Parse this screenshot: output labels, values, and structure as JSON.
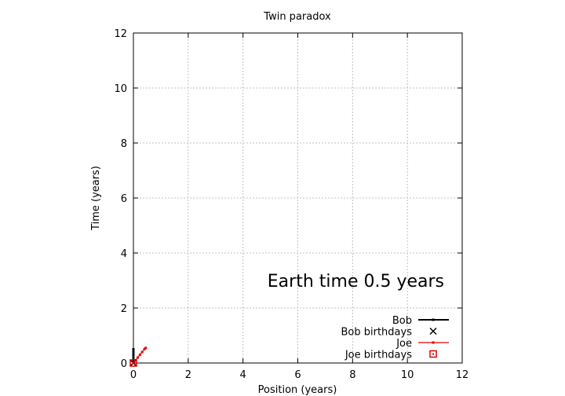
{
  "chart_data": {
    "type": "line",
    "title": "Twin paradox",
    "xlabel": "Position (years)",
    "ylabel": "Time (years)",
    "xlim": [
      0,
      12
    ],
    "ylim": [
      0,
      12
    ],
    "xticks": [
      "0",
      "2",
      "4",
      "6",
      "8",
      "10",
      "12"
    ],
    "yticks": [
      "0",
      "2",
      "4",
      "6",
      "8",
      "10",
      "12"
    ],
    "grid": true,
    "legend_position": "bottom-right",
    "annotation": "Earth time  0.5 years",
    "series": [
      {
        "name": "Bob",
        "style": "line-points",
        "color": "#000000",
        "x": [
          0,
          0,
          0,
          0,
          0,
          0
        ],
        "y": [
          0,
          0.1,
          0.2,
          0.3,
          0.4,
          0.5
        ]
      },
      {
        "name": "Bob birthdays",
        "style": "x-marker",
        "color": "#000000",
        "x": [
          0
        ],
        "y": [
          0
        ]
      },
      {
        "name": "Joe",
        "style": "line-points",
        "color": "#e00000",
        "x": [
          0,
          0.08,
          0.16,
          0.24,
          0.32,
          0.4,
          0.45
        ],
        "y": [
          0,
          0.1,
          0.2,
          0.3,
          0.4,
          0.5,
          0.55
        ]
      },
      {
        "name": "Joe birthdays",
        "style": "square-marker",
        "color": "#e00000",
        "x": [
          0
        ],
        "y": [
          0
        ]
      }
    ]
  }
}
